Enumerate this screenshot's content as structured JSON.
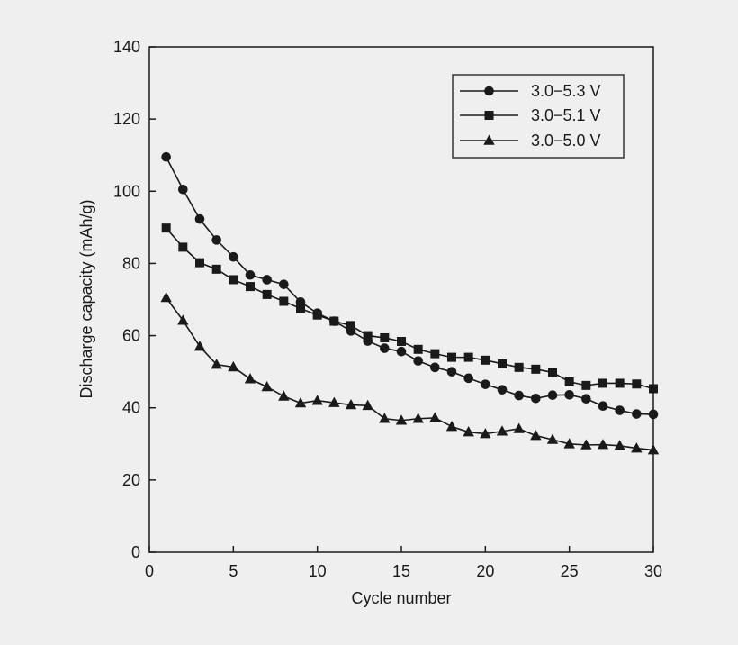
{
  "chart_data": {
    "type": "line",
    "title": "",
    "xlabel": "Cycle number",
    "ylabel": "Discharge capacity (mAh/g)",
    "xlim": [
      0,
      30
    ],
    "ylim": [
      0,
      140
    ],
    "x_ticks": [
      0,
      5,
      10,
      15,
      20,
      25,
      30
    ],
    "y_ticks": [
      0,
      20,
      40,
      60,
      80,
      100,
      120,
      140
    ],
    "grid": false,
    "legend_position": "top-right",
    "colors": {
      "background": "#efefef",
      "ink": "#1a1a1a"
    },
    "x": [
      1,
      2,
      3,
      4,
      5,
      6,
      7,
      8,
      9,
      10,
      11,
      12,
      13,
      14,
      15,
      16,
      17,
      18,
      19,
      20,
      21,
      22,
      23,
      24,
      25,
      26,
      27,
      28,
      29,
      30
    ],
    "series": [
      {
        "name": "3.0−5.3 V",
        "marker": "circle",
        "values": [
          109.5,
          100.5,
          92.3,
          86.5,
          81.8,
          76.8,
          75.5,
          74.2,
          69.3,
          66.2,
          64.0,
          61.3,
          58.5,
          56.5,
          55.6,
          53.0,
          51.2,
          50.0,
          48.2,
          46.5,
          45.0,
          43.4,
          42.6,
          43.5,
          43.6,
          42.5,
          40.5,
          39.3,
          38.3,
          38.2
        ]
      },
      {
        "name": "3.0−5.1 V",
        "marker": "square",
        "values": [
          89.8,
          84.5,
          80.2,
          78.4,
          75.5,
          73.6,
          71.4,
          69.5,
          67.5,
          65.7,
          64.0,
          62.8,
          60.0,
          59.4,
          58.4,
          56.2,
          55.0,
          54.0,
          54.0,
          53.2,
          52.2,
          51.2,
          50.7,
          49.8,
          47.2,
          46.2,
          46.8,
          46.8,
          46.6,
          45.3
        ]
      },
      {
        "name": "3.0−5.0 V",
        "marker": "triangle",
        "values": [
          70.5,
          64.2,
          57.0,
          52.0,
          51.3,
          48.0,
          45.8,
          43.2,
          41.3,
          42.0,
          41.4,
          40.8,
          40.6,
          37.0,
          36.5,
          37.0,
          37.2,
          34.8,
          33.3,
          32.8,
          33.5,
          34.2,
          32.3,
          31.2,
          30.0,
          29.7,
          29.8,
          29.5,
          28.8,
          28.3
        ]
      }
    ]
  }
}
